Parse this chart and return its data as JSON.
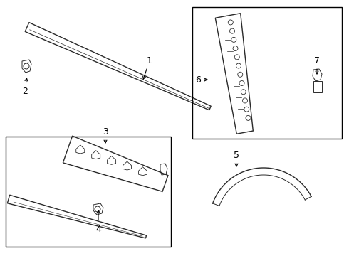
{
  "bg_color": "#ffffff",
  "line_color": "#2a2a2a",
  "box_color": "#000000",
  "figure_size": [
    4.9,
    3.6
  ],
  "dpi": 100
}
